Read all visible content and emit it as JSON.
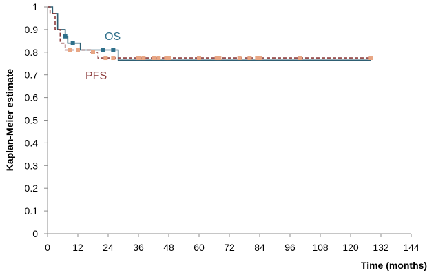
{
  "chart_data": {
    "type": "line",
    "xlabel": "Time (months)",
    "ylabel": "Kaplan-Meier estimate",
    "xlim": [
      0,
      144
    ],
    "ylim": [
      0,
      1
    ],
    "x_ticks": [
      0,
      12,
      24,
      36,
      48,
      60,
      72,
      84,
      96,
      108,
      120,
      132,
      144
    ],
    "y_ticks": [
      0,
      0.1,
      0.2,
      0.3,
      0.4,
      0.5,
      0.6,
      0.7,
      0.8,
      0.9,
      1
    ],
    "grid": false,
    "legend": "none",
    "series": [
      {
        "name": "OS",
        "line_style": "solid",
        "color": "#2e5f73",
        "marker_color": "#2e6f8a",
        "steps": [
          {
            "x": 0,
            "y": 1.0
          },
          {
            "x": 2,
            "y": 0.97
          },
          {
            "x": 4,
            "y": 0.9
          },
          {
            "x": 7,
            "y": 0.87
          },
          {
            "x": 8,
            "y": 0.84
          },
          {
            "x": 13,
            "y": 0.81
          },
          {
            "x": 28,
            "y": 0.765
          },
          {
            "x": 128,
            "y": 0.765
          }
        ],
        "censored": [
          {
            "x": 7,
            "y": 0.87
          },
          {
            "x": 10,
            "y": 0.84
          },
          {
            "x": 22,
            "y": 0.81
          },
          {
            "x": 26,
            "y": 0.81
          }
        ]
      },
      {
        "name": "PFS",
        "line_style": "dashed",
        "color": "#8b3a3a",
        "marker_color": "#e8a684",
        "steps": [
          {
            "x": 0,
            "y": 1.0
          },
          {
            "x": 1,
            "y": 0.97
          },
          {
            "x": 3,
            "y": 0.9
          },
          {
            "x": 5,
            "y": 0.84
          },
          {
            "x": 7,
            "y": 0.81
          },
          {
            "x": 17,
            "y": 0.8
          },
          {
            "x": 20,
            "y": 0.775
          },
          {
            "x": 128,
            "y": 0.775
          }
        ],
        "censored": [
          {
            "x": 9,
            "y": 0.81
          },
          {
            "x": 12,
            "y": 0.81
          },
          {
            "x": 18,
            "y": 0.8
          },
          {
            "x": 23,
            "y": 0.775
          },
          {
            "x": 26,
            "y": 0.775
          },
          {
            "x": 36,
            "y": 0.775
          },
          {
            "x": 38,
            "y": 0.775
          },
          {
            "x": 42,
            "y": 0.775
          },
          {
            "x": 44,
            "y": 0.775
          },
          {
            "x": 47,
            "y": 0.775
          },
          {
            "x": 48,
            "y": 0.775
          },
          {
            "x": 60,
            "y": 0.775
          },
          {
            "x": 67,
            "y": 0.775
          },
          {
            "x": 68,
            "y": 0.775
          },
          {
            "x": 76,
            "y": 0.775
          },
          {
            "x": 80,
            "y": 0.775
          },
          {
            "x": 83,
            "y": 0.775
          },
          {
            "x": 84,
            "y": 0.775
          },
          {
            "x": 100,
            "y": 0.775
          },
          {
            "x": 128,
            "y": 0.775
          }
        ]
      }
    ]
  }
}
